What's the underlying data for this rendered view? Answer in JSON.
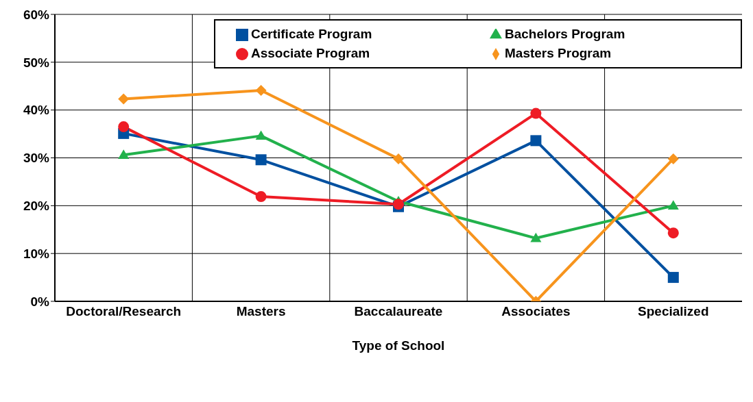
{
  "chart_data": {
    "type": "line",
    "xlabel": "Type of School",
    "categories": [
      "Doctoral/Research",
      "Masters",
      "Baccalaureate",
      "Associates",
      "Specialized"
    ],
    "series": [
      {
        "name": "Certificate Program",
        "color": "#0050a0",
        "marker": "square",
        "values": [
          35.1,
          29.6,
          19.8,
          33.6,
          5
        ]
      },
      {
        "name": "Bachelors Program",
        "color": "#22b14c",
        "marker": "triangle",
        "values": [
          30.6,
          34.6,
          20.9,
          13.2,
          20
        ]
      },
      {
        "name": "Associate Program",
        "color": "#ee1c25",
        "marker": "circle",
        "values": [
          36.5,
          21.9,
          20.3,
          39.3,
          14.3
        ]
      },
      {
        "name": "Masters Program",
        "color": "#f7941d",
        "marker": "diamond",
        "values": [
          42.3,
          44.1,
          29.8,
          0,
          29.8
        ]
      }
    ],
    "ylim": [
      0,
      60
    ],
    "yticks": [
      {
        "value": 0,
        "label": "0%"
      },
      {
        "value": 10,
        "label": "10%"
      },
      {
        "value": 20,
        "label": "20%"
      },
      {
        "value": 30,
        "label": "30%"
      },
      {
        "value": 40,
        "label": "40%"
      },
      {
        "value": 50,
        "label": "50%"
      },
      {
        "value": 60,
        "label": "60%"
      }
    ],
    "grid": true,
    "legend": "top right",
    "line_style": "solid"
  }
}
